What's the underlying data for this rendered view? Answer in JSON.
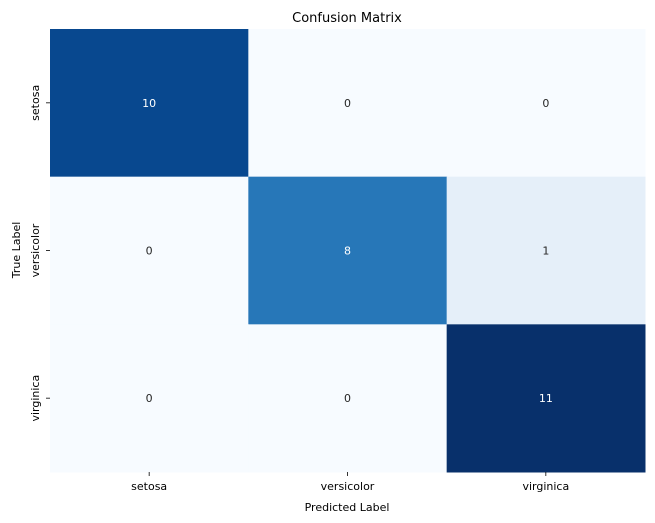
{
  "chart_data": {
    "type": "heatmap",
    "title": "Confusion Matrix",
    "xlabel": "Predicted Label",
    "ylabel": "True Label",
    "x_categories": [
      "setosa",
      "versicolor",
      "virginica"
    ],
    "y_categories": [
      "setosa",
      "versicolor",
      "virginica"
    ],
    "values": [
      [
        10,
        0,
        0
      ],
      [
        0,
        8,
        1
      ],
      [
        0,
        0,
        11
      ]
    ],
    "colormap": "Blues",
    "value_range": [
      0,
      11
    ],
    "colorbar": false,
    "annotations": true
  }
}
